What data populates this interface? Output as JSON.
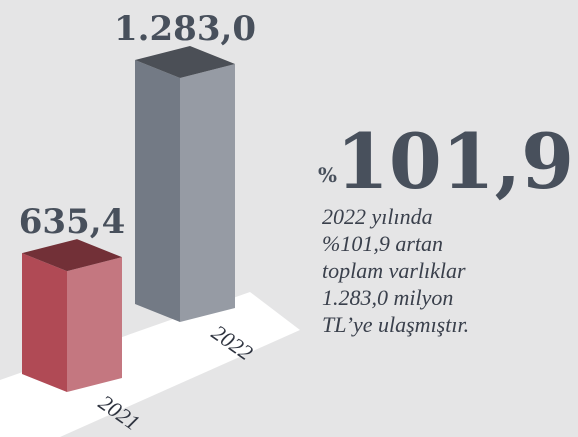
{
  "chart_data": {
    "type": "bar3d",
    "categories": [
      "2021",
      "2022"
    ],
    "values": [
      635.4,
      1283.0
    ],
    "value_labels": [
      "635,4",
      "1.283,0"
    ],
    "colors": [
      "#b04a55",
      "#737a85"
    ],
    "annotation": {
      "symbol": "%",
      "value": "101,9"
    },
    "description": [
      "2022 yılında",
      "%101,9 artan",
      "toplam varlıklar",
      "1.283,0 milyon",
      "TL’ye ulaşmıştır."
    ]
  }
}
